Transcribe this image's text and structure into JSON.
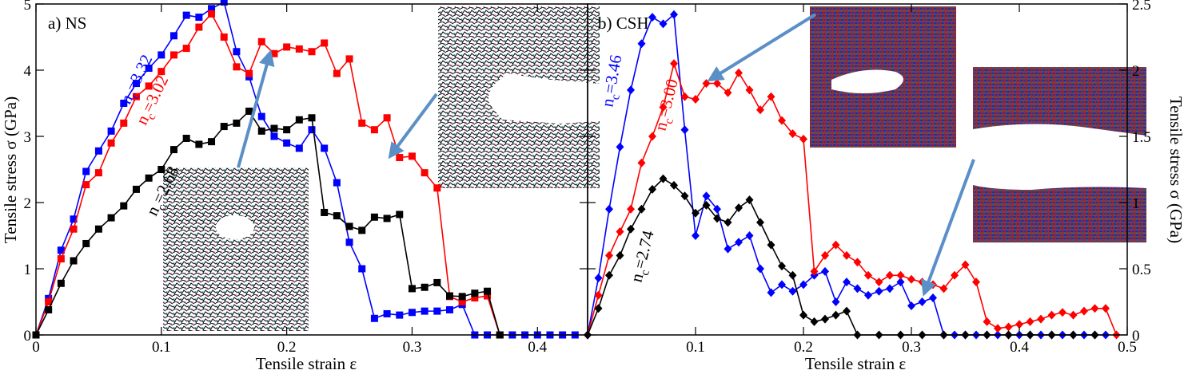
{
  "colors": {
    "blue": "#0000ff",
    "red": "#ff0000",
    "black": "#000000",
    "arrow": "#5b8fc7"
  },
  "chart_data": [
    {
      "type": "line",
      "panel_label": "a) NS",
      "xlabel": "Tensile strain ε",
      "ylabel": "Tensile stress σ (GPa)",
      "xlim": [
        0,
        0.44
      ],
      "ylim": [
        0,
        5
      ],
      "x_ticks": [
        "0",
        "0.1",
        "0.2",
        "0.3",
        "0.4"
      ],
      "y_ticks": [
        "0",
        "1",
        "2",
        "3",
        "4",
        "5"
      ],
      "marker": "square",
      "grid": false,
      "series": [
        {
          "name": "n_c=3.32",
          "label_main": "n",
          "label_sub": "c",
          "label_rest": "=3.32",
          "color": "#0000ff",
          "points": [
            [
              0,
              0
            ],
            [
              0.01,
              0.55
            ],
            [
              0.02,
              1.28
            ],
            [
              0.03,
              1.75
            ],
            [
              0.04,
              2.47
            ],
            [
              0.05,
              2.78
            ],
            [
              0.06,
              3.08
            ],
            [
              0.07,
              3.5
            ],
            [
              0.08,
              3.8
            ],
            [
              0.09,
              4.03
            ],
            [
              0.1,
              4.23
            ],
            [
              0.11,
              4.52
            ],
            [
              0.12,
              4.83
            ],
            [
              0.13,
              4.8
            ],
            [
              0.14,
              4.93
            ],
            [
              0.15,
              5.03
            ],
            [
              0.16,
              4.28
            ],
            [
              0.17,
              3.9
            ],
            [
              0.18,
              3.3
            ],
            [
              0.19,
              3.0
            ],
            [
              0.2,
              2.9
            ],
            [
              0.21,
              2.82
            ],
            [
              0.22,
              3.1
            ],
            [
              0.23,
              2.82
            ],
            [
              0.24,
              2.3
            ],
            [
              0.25,
              1.4
            ],
            [
              0.26,
              1.0
            ],
            [
              0.27,
              0.25
            ],
            [
              0.28,
              0.32
            ],
            [
              0.29,
              0.3
            ],
            [
              0.3,
              0.34
            ],
            [
              0.31,
              0.36
            ],
            [
              0.32,
              0.36
            ],
            [
              0.33,
              0.38
            ],
            [
              0.34,
              0.46
            ],
            [
              0.35,
              0.0
            ],
            [
              0.36,
              0.0
            ],
            [
              0.37,
              0.0
            ],
            [
              0.38,
              0.0
            ],
            [
              0.39,
              0.0
            ],
            [
              0.4,
              0.0
            ],
            [
              0.41,
              0.0
            ],
            [
              0.42,
              0.0
            ],
            [
              0.43,
              0.0
            ]
          ]
        },
        {
          "name": "n_c=3.02",
          "label_main": "n",
          "label_sub": "c",
          "label_rest": "=3.02",
          "color": "#ff0000",
          "points": [
            [
              0,
              0
            ],
            [
              0.01,
              0.5
            ],
            [
              0.02,
              1.15
            ],
            [
              0.03,
              1.6
            ],
            [
              0.04,
              2.27
            ],
            [
              0.05,
              2.45
            ],
            [
              0.06,
              2.9
            ],
            [
              0.07,
              3.2
            ],
            [
              0.08,
              3.6
            ],
            [
              0.09,
              3.76
            ],
            [
              0.1,
              3.98
            ],
            [
              0.11,
              4.23
            ],
            [
              0.12,
              4.33
            ],
            [
              0.13,
              4.65
            ],
            [
              0.14,
              4.85
            ],
            [
              0.15,
              4.5
            ],
            [
              0.16,
              4.05
            ],
            [
              0.17,
              3.95
            ],
            [
              0.18,
              4.43
            ],
            [
              0.19,
              4.25
            ],
            [
              0.2,
              4.35
            ],
            [
              0.21,
              4.32
            ],
            [
              0.22,
              4.28
            ],
            [
              0.23,
              4.41
            ],
            [
              0.24,
              3.95
            ],
            [
              0.25,
              4.17
            ],
            [
              0.26,
              3.2
            ],
            [
              0.27,
              3.1
            ],
            [
              0.28,
              3.28
            ],
            [
              0.29,
              2.68
            ],
            [
              0.3,
              2.7
            ],
            [
              0.31,
              2.45
            ],
            [
              0.32,
              2.22
            ],
            [
              0.33,
              0.58
            ],
            [
              0.34,
              0.5
            ],
            [
              0.35,
              0.56
            ],
            [
              0.36,
              0.59
            ],
            [
              0.37,
              0.0
            ]
          ]
        },
        {
          "name": "n_c=2.68",
          "label_main": "n",
          "label_sub": "c",
          "label_rest": "=2.68",
          "color": "#000000",
          "points": [
            [
              0,
              0
            ],
            [
              0.01,
              0.38
            ],
            [
              0.02,
              0.78
            ],
            [
              0.03,
              1.12
            ],
            [
              0.04,
              1.38
            ],
            [
              0.05,
              1.6
            ],
            [
              0.06,
              1.77
            ],
            [
              0.07,
              1.95
            ],
            [
              0.08,
              2.2
            ],
            [
              0.09,
              2.37
            ],
            [
              0.1,
              2.5
            ],
            [
              0.11,
              2.8
            ],
            [
              0.12,
              2.97
            ],
            [
              0.13,
              2.88
            ],
            [
              0.14,
              2.92
            ],
            [
              0.15,
              3.15
            ],
            [
              0.16,
              3.2
            ],
            [
              0.17,
              3.38
            ],
            [
              0.18,
              3.08
            ],
            [
              0.19,
              3.12
            ],
            [
              0.2,
              3.1
            ],
            [
              0.21,
              3.25
            ],
            [
              0.22,
              3.28
            ],
            [
              0.23,
              1.85
            ],
            [
              0.24,
              1.8
            ],
            [
              0.25,
              1.64
            ],
            [
              0.26,
              1.58
            ],
            [
              0.27,
              1.78
            ],
            [
              0.28,
              1.76
            ],
            [
              0.29,
              1.82
            ],
            [
              0.3,
              0.7
            ],
            [
              0.31,
              0.72
            ],
            [
              0.32,
              0.79
            ],
            [
              0.33,
              0.59
            ],
            [
              0.34,
              0.58
            ],
            [
              0.35,
              0.63
            ],
            [
              0.36,
              0.66
            ],
            [
              0.37,
              0.0
            ]
          ]
        }
      ]
    },
    {
      "type": "line",
      "panel_label": "b) CSH",
      "xlabel": "Tensile strain ε",
      "ylabel": "Tensile stress σ (GPa)",
      "xlim": [
        0,
        0.5
      ],
      "ylim": [
        0,
        2.5
      ],
      "x_ticks": [
        "0.1",
        "0.2",
        "0.3",
        "0.4",
        "0.5"
      ],
      "y_ticks": [
        "0",
        "0.5",
        "1",
        "1.5",
        "2",
        "2.5"
      ],
      "y_axis_side": "right",
      "marker": "diamond",
      "grid": false,
      "series": [
        {
          "name": "n_c=3.46",
          "label_main": "n",
          "label_sub": "c",
          "label_rest": "=3.46",
          "color": "#0000ff",
          "points": [
            [
              0,
              0
            ],
            [
              0.01,
              0.43
            ],
            [
              0.02,
              0.95
            ],
            [
              0.03,
              1.42
            ],
            [
              0.04,
              1.85
            ],
            [
              0.05,
              2.2
            ],
            [
              0.06,
              2.4
            ],
            [
              0.07,
              2.35
            ],
            [
              0.08,
              2.42
            ],
            [
              0.09,
              1.55
            ],
            [
              0.1,
              0.75
            ],
            [
              0.11,
              1.05
            ],
            [
              0.12,
              0.95
            ],
            [
              0.13,
              0.65
            ],
            [
              0.14,
              0.7
            ],
            [
              0.15,
              0.75
            ],
            [
              0.16,
              0.5
            ],
            [
              0.17,
              0.32
            ],
            [
              0.18,
              0.38
            ],
            [
              0.19,
              0.33
            ],
            [
              0.2,
              0.38
            ],
            [
              0.21,
              0.45
            ],
            [
              0.22,
              0.48
            ],
            [
              0.23,
              0.25
            ],
            [
              0.24,
              0.4
            ],
            [
              0.25,
              0.35
            ],
            [
              0.26,
              0.3
            ],
            [
              0.27,
              0.33
            ],
            [
              0.28,
              0.35
            ],
            [
              0.29,
              0.4
            ],
            [
              0.3,
              0.22
            ],
            [
              0.31,
              0.25
            ],
            [
              0.32,
              0.28
            ],
            [
              0.33,
              0.0
            ],
            [
              0.34,
              0.0
            ],
            [
              0.35,
              0.0
            ],
            [
              0.36,
              0.0
            ],
            [
              0.37,
              0.0
            ],
            [
              0.38,
              0.0
            ],
            [
              0.39,
              0.0
            ],
            [
              0.4,
              0.0
            ],
            [
              0.41,
              0.0
            ],
            [
              0.42,
              0.0
            ],
            [
              0.43,
              0.0
            ],
            [
              0.44,
              0.0
            ],
            [
              0.45,
              0.0
            ],
            [
              0.46,
              0.0
            ],
            [
              0.47,
              0.0
            ],
            [
              0.48,
              0.0
            ]
          ]
        },
        {
          "name": "n_c=3.00",
          "label_main": "n",
          "label_sub": "c",
          "label_rest": "=3.00",
          "color": "#ff0000",
          "points": [
            [
              0,
              0
            ],
            [
              0.01,
              0.3
            ],
            [
              0.02,
              0.6
            ],
            [
              0.03,
              0.78
            ],
            [
              0.04,
              0.95
            ],
            [
              0.05,
              1.3
            ],
            [
              0.06,
              1.5
            ],
            [
              0.07,
              1.72
            ],
            [
              0.08,
              2.05
            ],
            [
              0.09,
              1.8
            ],
            [
              0.1,
              1.78
            ],
            [
              0.11,
              1.9
            ],
            [
              0.12,
              1.9
            ],
            [
              0.13,
              1.83
            ],
            [
              0.14,
              1.98
            ],
            [
              0.15,
              1.85
            ],
            [
              0.16,
              1.7
            ],
            [
              0.17,
              1.8
            ],
            [
              0.18,
              1.62
            ],
            [
              0.19,
              1.52
            ],
            [
              0.2,
              1.48
            ],
            [
              0.21,
              0.48
            ],
            [
              0.22,
              0.6
            ],
            [
              0.23,
              0.68
            ],
            [
              0.24,
              0.6
            ],
            [
              0.25,
              0.55
            ],
            [
              0.26,
              0.45
            ],
            [
              0.27,
              0.4
            ],
            [
              0.28,
              0.45
            ],
            [
              0.29,
              0.45
            ],
            [
              0.3,
              0.42
            ],
            [
              0.31,
              0.4
            ],
            [
              0.32,
              0.38
            ],
            [
              0.33,
              0.35
            ],
            [
              0.34,
              0.45
            ],
            [
              0.35,
              0.53
            ],
            [
              0.36,
              0.4
            ],
            [
              0.37,
              0.1
            ],
            [
              0.38,
              0.05
            ],
            [
              0.39,
              0.06
            ],
            [
              0.4,
              0.08
            ],
            [
              0.41,
              0.1
            ],
            [
              0.42,
              0.12
            ],
            [
              0.43,
              0.15
            ],
            [
              0.44,
              0.17
            ],
            [
              0.45,
              0.15
            ],
            [
              0.46,
              0.18
            ],
            [
              0.47,
              0.2
            ],
            [
              0.48,
              0.2
            ],
            [
              0.49,
              0.0
            ]
          ]
        },
        {
          "name": "n_c=2.74",
          "label_main": "n",
          "label_sub": "c",
          "label_rest": "=2.74",
          "color": "#000000",
          "points": [
            [
              0,
              0
            ],
            [
              0.01,
              0.2
            ],
            [
              0.02,
              0.45
            ],
            [
              0.03,
              0.6
            ],
            [
              0.04,
              0.8
            ],
            [
              0.05,
              0.95
            ],
            [
              0.06,
              1.1
            ],
            [
              0.07,
              1.18
            ],
            [
              0.08,
              1.13
            ],
            [
              0.09,
              1.05
            ],
            [
              0.1,
              0.92
            ],
            [
              0.11,
              0.98
            ],
            [
              0.12,
              0.88
            ],
            [
              0.13,
              0.85
            ],
            [
              0.14,
              0.96
            ],
            [
              0.15,
              1.02
            ],
            [
              0.16,
              0.85
            ],
            [
              0.17,
              0.68
            ],
            [
              0.18,
              0.52
            ],
            [
              0.19,
              0.45
            ],
            [
              0.2,
              0.15
            ],
            [
              0.21,
              0.1
            ],
            [
              0.22,
              0.12
            ],
            [
              0.23,
              0.15
            ],
            [
              0.24,
              0.18
            ],
            [
              0.25,
              0.0
            ],
            [
              0.27,
              0.0
            ],
            [
              0.29,
              0.0
            ],
            [
              0.31,
              0.0
            ],
            [
              0.33,
              0.0
            ],
            [
              0.35,
              0.0
            ],
            [
              0.37,
              0.0
            ],
            [
              0.39,
              0.0
            ],
            [
              0.41,
              0.0
            ],
            [
              0.43,
              0.0
            ],
            [
              0.45,
              0.0
            ],
            [
              0.47,
              0.0
            ]
          ]
        }
      ]
    }
  ]
}
